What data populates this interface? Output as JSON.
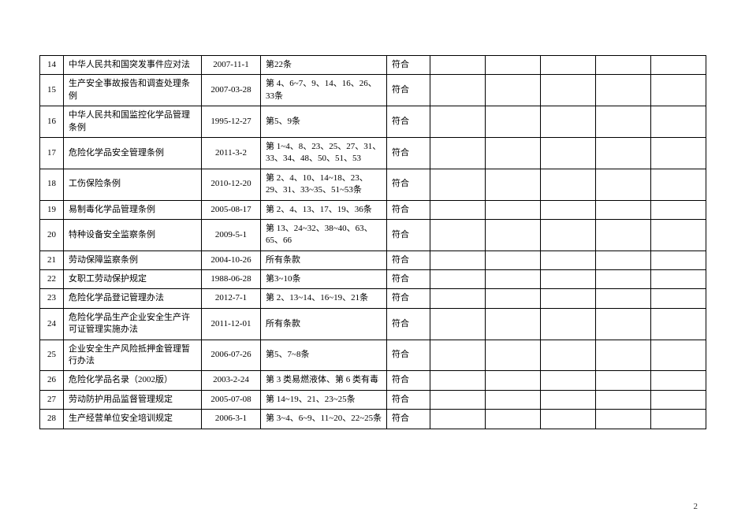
{
  "table": {
    "rows": [
      {
        "num": "14",
        "name": "中华人民共和国突发事件应对法",
        "date": "2007-11-1",
        "clause": "第22条",
        "status": "符合"
      },
      {
        "num": "15",
        "name": "生产安全事故报告和调查处理条例",
        "date": "2007-03-28",
        "clause": "第 4、6~7、9、14、16、26、33条",
        "status": "符合"
      },
      {
        "num": "16",
        "name": "中华人民共和国监控化学品管理条例",
        "date": "1995-12-27",
        "clause": "第5、9条",
        "status": "符合"
      },
      {
        "num": "17",
        "name": "危险化学品安全管理条例",
        "date": "2011-3-2",
        "clause": "第 1~4、8、23、25、27、31、33、34、48、50、51、53",
        "status": "符合"
      },
      {
        "num": "18",
        "name": "工伤保险条例",
        "date": "2010-12-20",
        "clause": "第 2、4、10、14~18、23、29、31、33~35、51~53条",
        "status": "符合"
      },
      {
        "num": "19",
        "name": "易制毒化学品管理条例",
        "date": "2005-08-17",
        "clause": "第 2、4、13、17、19、36条",
        "status": "符合"
      },
      {
        "num": "20",
        "name": "特种设备安全监察条例",
        "date": "2009-5-1",
        "clause": "第 13、24~32、38~40、63、65、66",
        "status": "符合"
      },
      {
        "num": "21",
        "name": "劳动保障监察条例",
        "date": "2004-10-26",
        "clause": "所有条款",
        "status": "符合"
      },
      {
        "num": "22",
        "name": "女职工劳动保护规定",
        "date": "1988-06-28",
        "clause": "第3~10条",
        "status": "符合"
      },
      {
        "num": "23",
        "name": "危险化学品登记管理办法",
        "date": "2012-7-1",
        "clause": "第 2、13~14、16~19、21条",
        "status": "符合"
      },
      {
        "num": "24",
        "name": "危险化学品生产企业安全生产许可证管理实施办法",
        "date": "2011-12-01",
        "clause": "所有条款",
        "status": "符合"
      },
      {
        "num": "25",
        "name": "企业安全生产风险抵押金管理暂行办法",
        "date": "2006-07-26",
        "clause": "第5、7~8条",
        "status": "符合"
      },
      {
        "num": "26",
        "name": "危险化学品名录（2002版）",
        "date": "2003-2-24",
        "clause": "第 3 类易燃液体、第 6 类有毒",
        "status": "符合"
      },
      {
        "num": "27",
        "name": "劳动防护用品监督管理规定",
        "date": "2005-07-08",
        "clause": "第 14~19、21、23~25条",
        "status": "符合"
      },
      {
        "num": "28",
        "name": "生产经营单位安全培训规定",
        "date": "2006-3-1",
        "clause": "第 3~4、6~9、11~20、22~25条",
        "status": "符合"
      }
    ]
  },
  "pageNumber": "2"
}
